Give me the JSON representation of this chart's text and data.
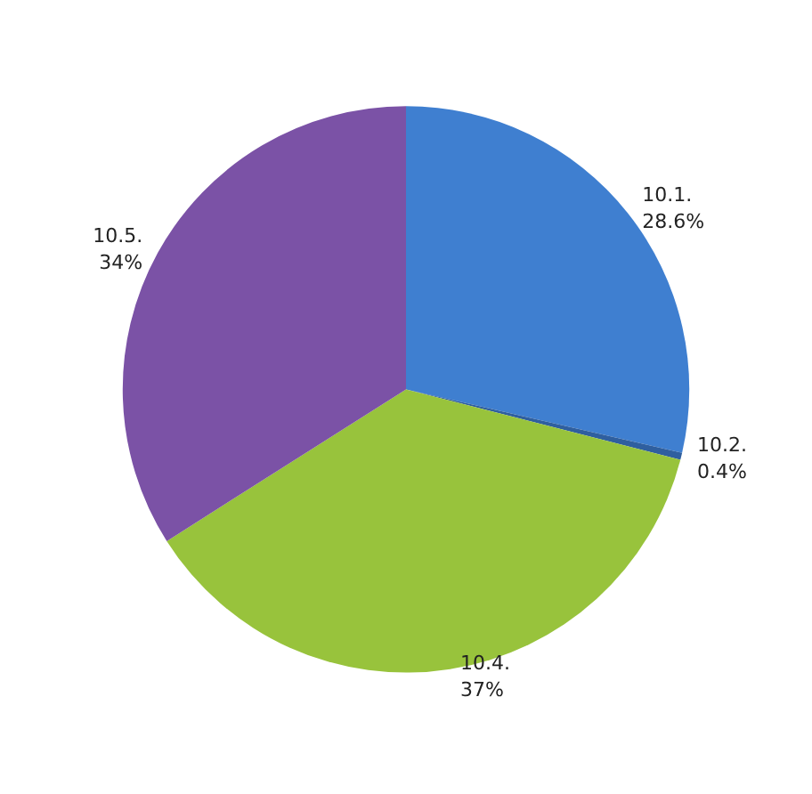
{
  "chart_data": {
    "type": "pie",
    "categories": [
      "10.1.",
      "10.2.",
      "10.4.",
      "10.5."
    ],
    "values": [
      28.6,
      0.4,
      37,
      34
    ],
    "value_labels": [
      "28.6%",
      "0.4%",
      "37%",
      "34%"
    ],
    "colors": [
      "#3f7fd0",
      "#2f5f9f",
      "#98c33c",
      "#7b52a6"
    ],
    "legend": false
  }
}
